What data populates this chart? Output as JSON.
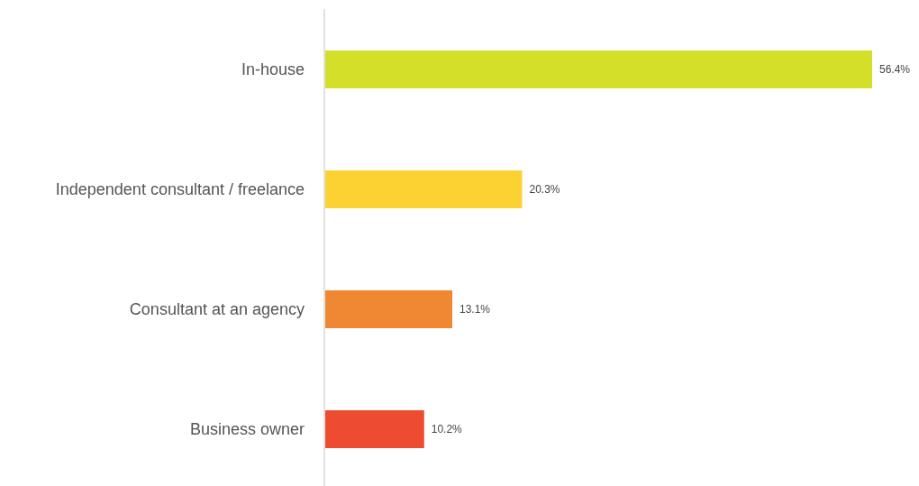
{
  "chart_data": {
    "type": "bar",
    "orientation": "horizontal",
    "categories": [
      "In-house",
      "Independent consultant / freelance",
      "Consultant at an agency",
      "Business owner"
    ],
    "values": [
      56.4,
      20.3,
      13.1,
      10.2
    ],
    "colors": [
      "#d4df2a",
      "#fbd232",
      "#f08732",
      "#ee4c30"
    ],
    "value_labels": [
      "56.4%",
      "20.3%",
      "13.1%",
      "10.2%"
    ]
  }
}
